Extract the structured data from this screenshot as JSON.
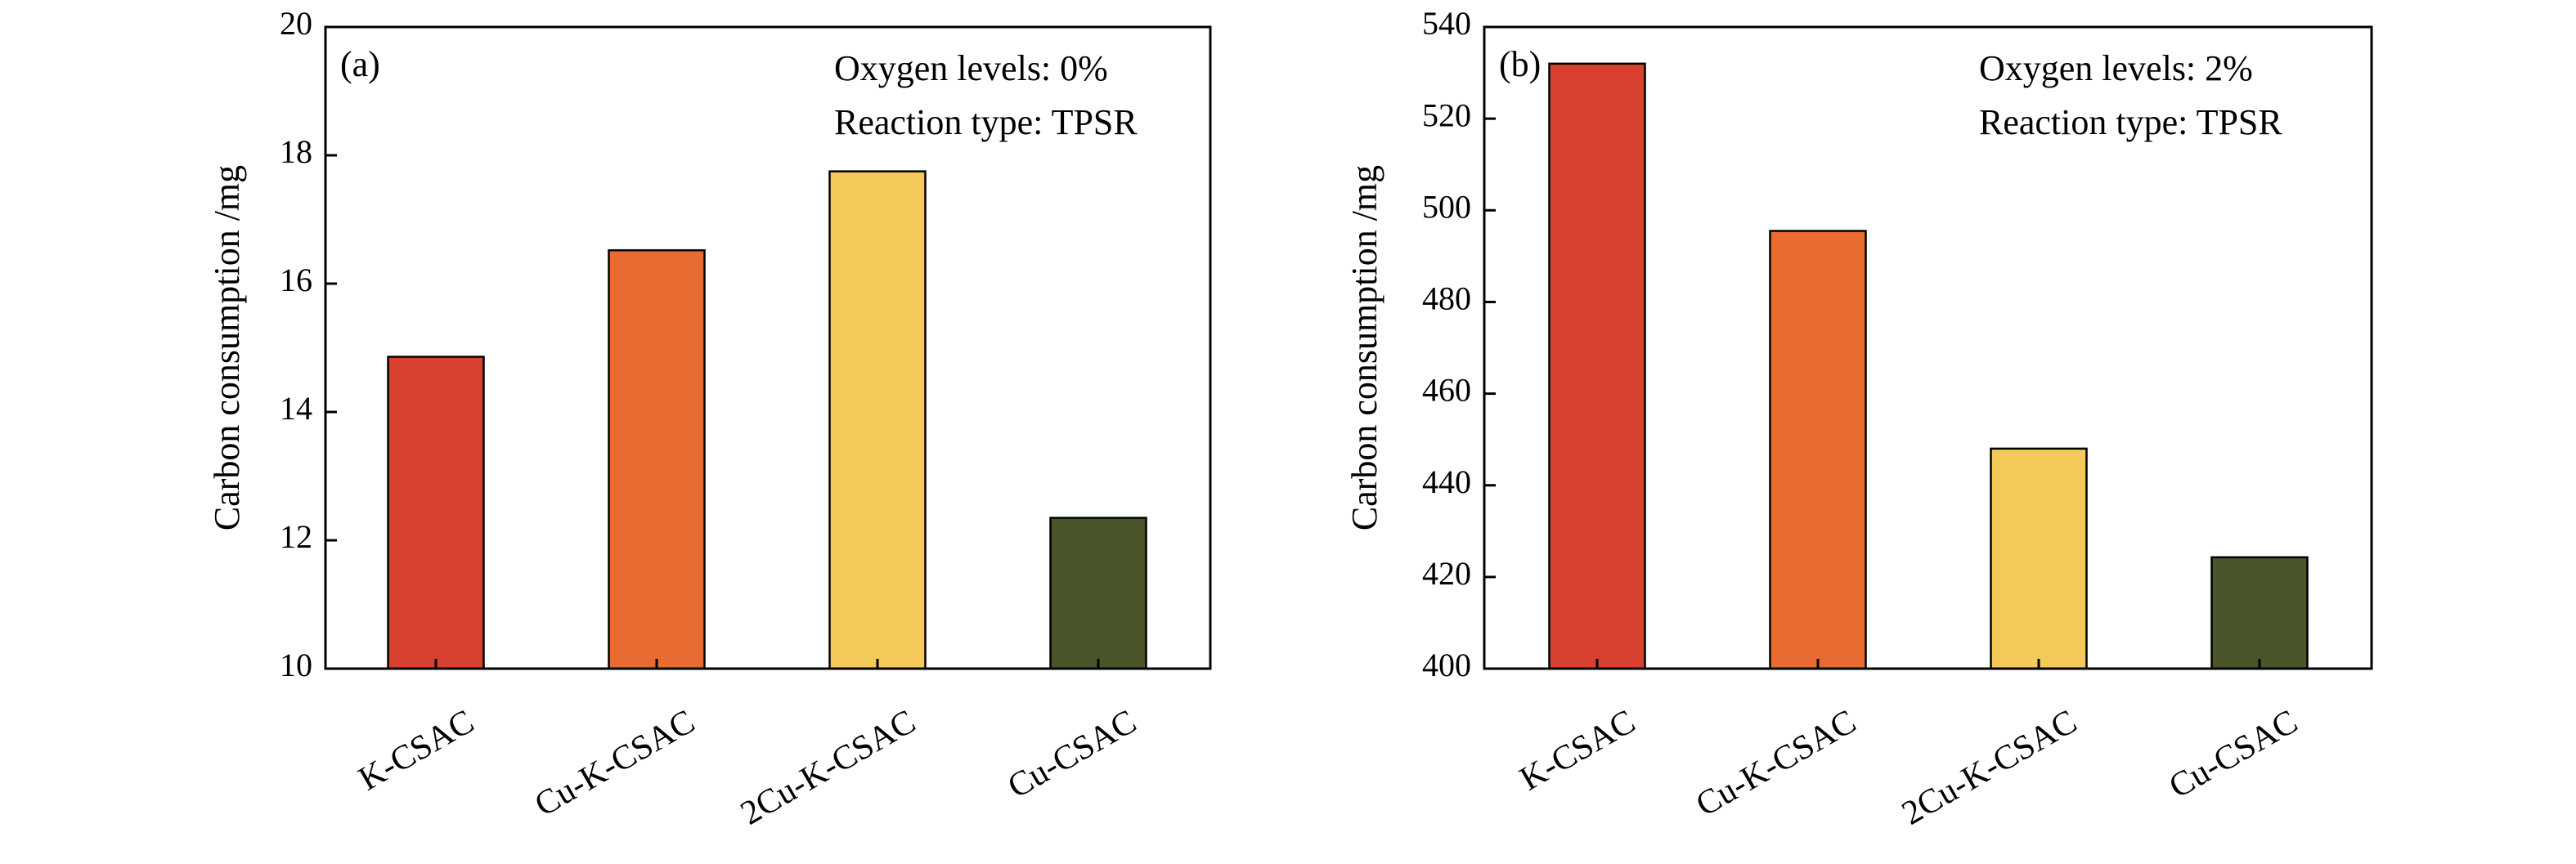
{
  "chart_data": [
    {
      "type": "bar",
      "panel_label": "(a)",
      "annotations": [
        "Oxygen levels: 0%",
        "Reaction type: TPSR"
      ],
      "categories": [
        "K-CSAC",
        "Cu-K-CSAC",
        "2Cu-K-CSAC",
        "Cu-CSAC"
      ],
      "values": [
        14.86,
        16.52,
        17.75,
        12.35
      ],
      "colors": [
        "#d84030",
        "#e86c32",
        "#f3ca5a",
        "#4a552a"
      ],
      "xlabel": "",
      "ylabel": "Carbon consumption /mg",
      "ylim": [
        10,
        20
      ],
      "yticks": [
        10,
        12,
        14,
        16,
        18,
        20
      ],
      "grid": false,
      "legend": "none"
    },
    {
      "type": "bar",
      "panel_label": "(b)",
      "annotations": [
        "Oxygen levels: 2%",
        "Reaction type: TPSR"
      ],
      "categories": [
        "K-CSAC",
        "Cu-K-CSAC",
        "2Cu-K-CSAC",
        "Cu-CSAC"
      ],
      "values": [
        532,
        495.5,
        448,
        424.3
      ],
      "colors": [
        "#d84030",
        "#e86c32",
        "#f3ca5a",
        "#4a552a"
      ],
      "xlabel": "",
      "ylabel": "Carbon consumption /mg",
      "ylim": [
        400,
        540
      ],
      "yticks": [
        400,
        420,
        440,
        460,
        480,
        500,
        520,
        540
      ],
      "grid": false,
      "legend": "none"
    }
  ]
}
